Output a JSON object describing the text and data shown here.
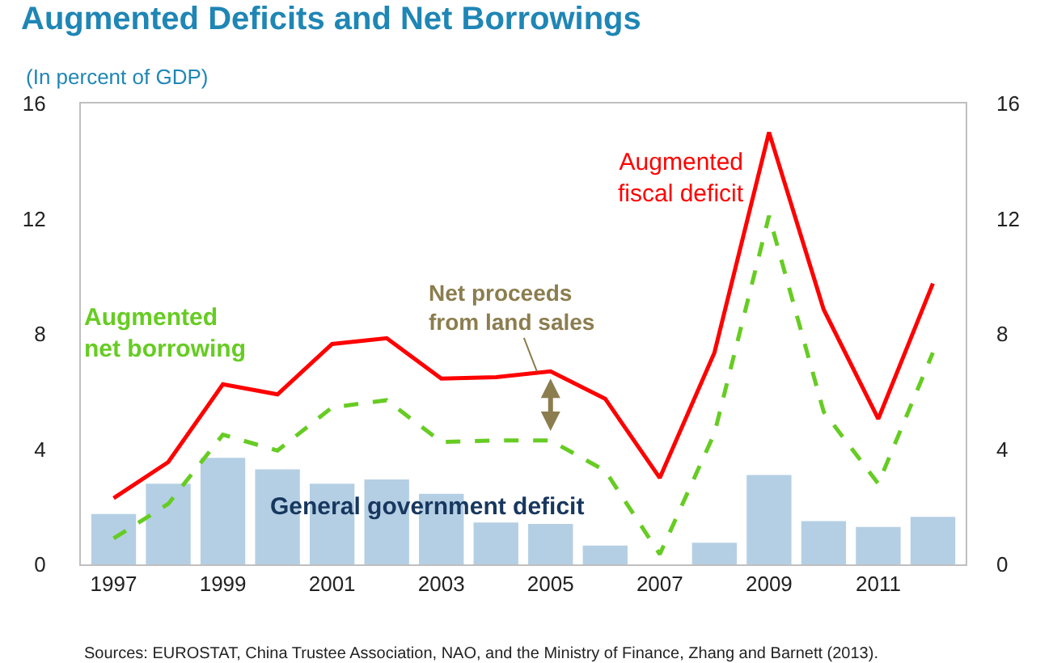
{
  "chart_data": {
    "type": "line",
    "title": "Augmented Deficits and Net Borrowings",
    "subtitle": "(In percent of GDP)",
    "categories": [
      "1997",
      null,
      "1999",
      null,
      "2001",
      null,
      "2003",
      null,
      "2005",
      null,
      "2007",
      null,
      "2009",
      null,
      "2011",
      null
    ],
    "series": [
      {
        "name": "General government deficit",
        "type": "bar",
        "color": "#b4cfe4",
        "values": [
          1.75,
          2.8,
          3.7,
          3.3,
          2.8,
          2.95,
          2.45,
          1.45,
          1.4,
          0.65,
          0,
          0.75,
          3.1,
          1.5,
          1.3,
          1.65
        ]
      },
      {
        "name": "Augmented fiscal deficit",
        "color": "#ff0000",
        "line_style": "solid",
        "values": [
          2.3,
          3.55,
          6.25,
          5.9,
          7.65,
          7.85,
          6.45,
          6.5,
          6.7,
          5.75,
          3.0,
          7.35,
          15.0,
          8.85,
          5.05,
          9.75
        ]
      },
      {
        "name": "Augmented net borrowing",
        "color": "#66cc22",
        "line_style": "dashed",
        "values": [
          0.9,
          2.1,
          4.5,
          3.95,
          5.45,
          5.7,
          4.25,
          4.3,
          4.3,
          3.25,
          0.35,
          4.55,
          12.1,
          5.3,
          2.8,
          7.35
        ]
      }
    ],
    "ylim": [
      0,
      16
    ],
    "yticks": [
      0,
      4,
      8,
      12,
      16
    ],
    "y2lim": [
      0,
      16
    ],
    "y2ticks": [
      0,
      4,
      8,
      12,
      16
    ],
    "legend": false,
    "marker": "none",
    "annotations": [
      {
        "text": "Net proceeds from land sales",
        "y": 6.7
      },
      "Sources: EUROSTAT, China Trustee Association, NAO, and the Ministry of Finance, Zhang and Barnett (2013)."
    ]
  }
}
